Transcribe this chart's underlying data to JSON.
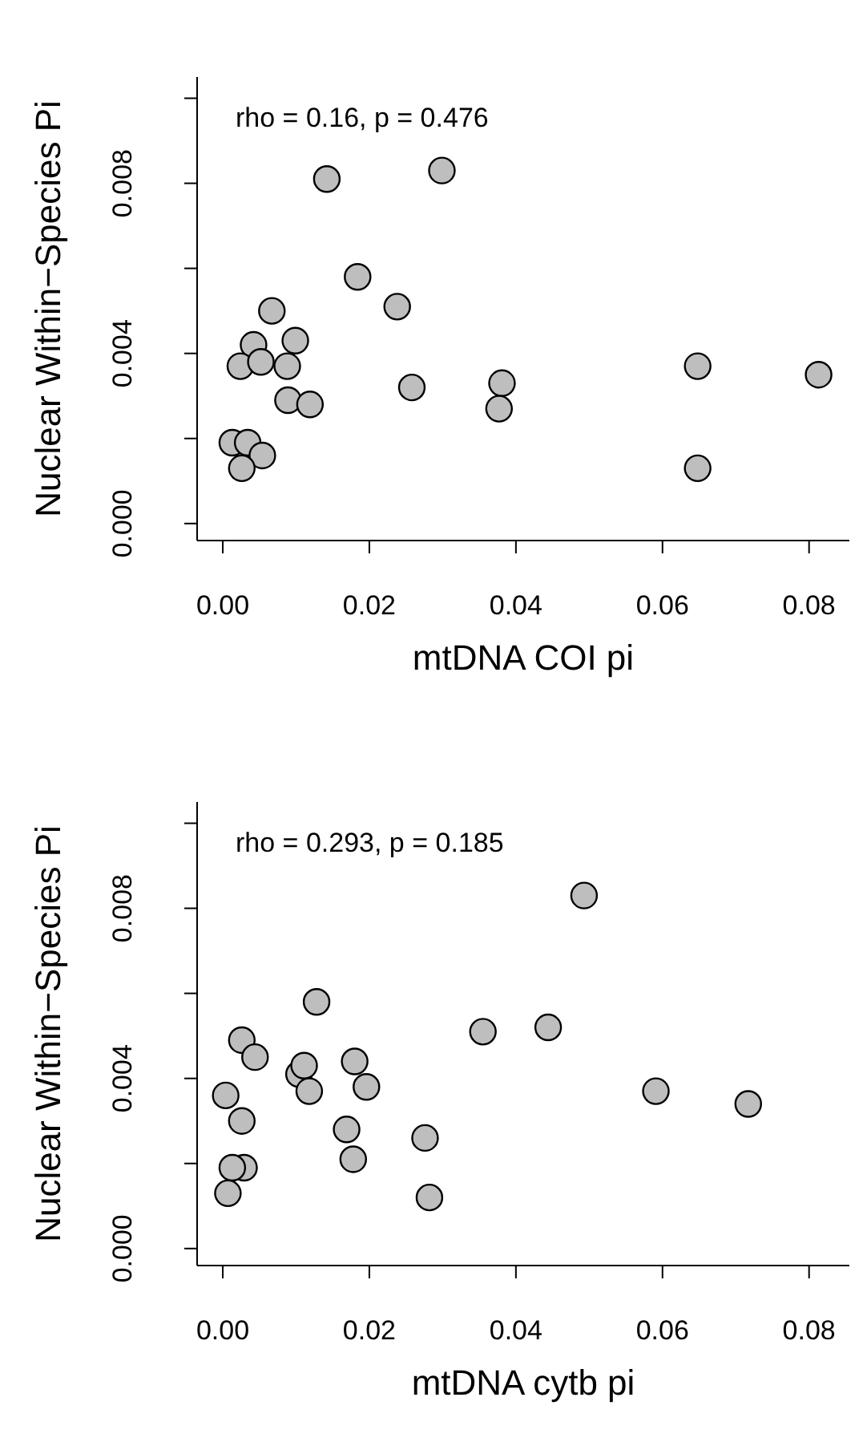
{
  "chart_data": [
    {
      "type": "scatter",
      "xlabel": "mtDNA COI pi",
      "ylabel": "Nuclear Within−Species Pi",
      "annotations": [
        "rho = 0.16, p = 0.476"
      ],
      "marker": "circle",
      "color": "#bebebe",
      "x": [
        0.0142,
        0.0299,
        0.0184,
        0.0238,
        0.0067,
        0.0042,
        0.0099,
        0.0024,
        0.0052,
        0.0088,
        0.0258,
        0.0381,
        0.0377,
        0.0648,
        0.0813,
        0.0089,
        0.0119,
        0.0013,
        0.0034,
        0.0054,
        0.0026,
        0.0648
      ],
      "values": [
        0.0081,
        0.0083,
        0.0058,
        0.0051,
        0.005,
        0.0042,
        0.0043,
        0.0037,
        0.0038,
        0.0037,
        0.0032,
        0.0033,
        0.0027,
        0.0037,
        0.0035,
        0.0029,
        0.0028,
        0.0019,
        0.0019,
        0.0016,
        0.0013,
        0.0013
      ],
      "xlim": [
        -0.0035,
        0.0855
      ],
      "ylim": [
        -0.0004,
        0.0105
      ],
      "xticks": [
        {
          "value": 0,
          "label": "0.00"
        },
        {
          "value": 0.02,
          "label": "0.02"
        },
        {
          "value": 0.04,
          "label": "0.04"
        },
        {
          "value": 0.06,
          "label": "0.06"
        },
        {
          "value": 0.08,
          "label": "0.08"
        }
      ],
      "yticks": [
        {
          "value": 0,
          "label": "0.000"
        },
        {
          "value": 0.002,
          "label": null
        },
        {
          "value": 0.004,
          "label": "0.004"
        },
        {
          "value": 0.006,
          "label": null
        },
        {
          "value": 0.008,
          "label": "0.008"
        },
        {
          "value": 0.01,
          "label": null
        }
      ]
    },
    {
      "type": "scatter",
      "xlabel": "mtDNA cytb pi",
      "ylabel": "Nuclear Within−Species Pi",
      "annotations": [
        "rho = 0.293, p = 0.185"
      ],
      "marker": "circle",
      "color": "#bebebe",
      "x": [
        0.0493,
        0.0128,
        0.0355,
        0.0444,
        0.0026,
        0.0044,
        0.0104,
        0.0111,
        0.018,
        0.0118,
        0.0196,
        0.0004,
        0.0591,
        0.0717,
        0.0026,
        0.0169,
        0.0276,
        0.0178,
        0.0029,
        0.0013,
        0.0007,
        0.0282
      ],
      "values": [
        0.0083,
        0.0058,
        0.0051,
        0.0052,
        0.0049,
        0.0045,
        0.0041,
        0.0043,
        0.0044,
        0.0037,
        0.0038,
        0.0036,
        0.0037,
        0.0034,
        0.003,
        0.0028,
        0.0026,
        0.0021,
        0.0019,
        0.0019,
        0.0013,
        0.0012
      ],
      "xlim": [
        -0.0035,
        0.0855
      ],
      "ylim": [
        -0.0004,
        0.0105
      ],
      "xticks": [
        {
          "value": 0,
          "label": "0.00"
        },
        {
          "value": 0.02,
          "label": "0.02"
        },
        {
          "value": 0.04,
          "label": "0.04"
        },
        {
          "value": 0.06,
          "label": "0.06"
        },
        {
          "value": 0.08,
          "label": "0.08"
        }
      ],
      "yticks": [
        {
          "value": 0,
          "label": "0.000"
        },
        {
          "value": 0.002,
          "label": null
        },
        {
          "value": 0.004,
          "label": "0.004"
        },
        {
          "value": 0.006,
          "label": null
        },
        {
          "value": 0.008,
          "label": "0.008"
        },
        {
          "value": 0.01,
          "label": null
        }
      ]
    }
  ]
}
